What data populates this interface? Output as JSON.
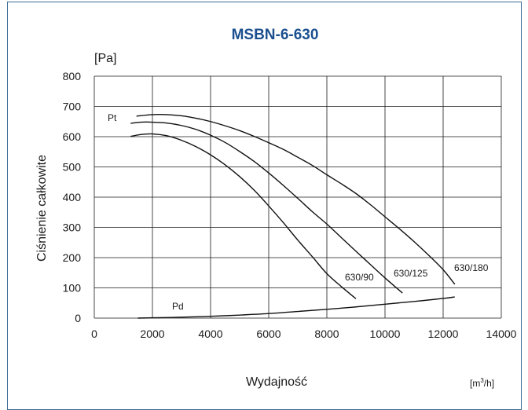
{
  "chart_data": {
    "type": "line",
    "title": "MSBN-6-630",
    "ylabel": "Ciśnienie całkowite",
    "yunit": "[Pa]",
    "xlabel": "Wydajność",
    "xunit_base": "[m",
    "xunit_sup": "3",
    "xunit_tail": "/h]",
    "xlim": [
      0,
      14000
    ],
    "ylim": [
      0,
      800
    ],
    "xticks": [
      0,
      2000,
      4000,
      6000,
      8000,
      10000,
      12000,
      14000
    ],
    "yticks": [
      0,
      100,
      200,
      300,
      400,
      500,
      600,
      700,
      800
    ],
    "grid": true,
    "series": [
      {
        "name": "630/90",
        "x": [
          1250,
          1600,
          2000,
          2500,
          3000,
          3500,
          4000,
          4500,
          5000,
          5500,
          6000,
          6500,
          7000,
          7500,
          8000,
          8500,
          9000
        ],
        "y": [
          601,
          607,
          609,
          603,
          588,
          567,
          540,
          507,
          468,
          423,
          371,
          316,
          258,
          203,
          147,
          104,
          64
        ]
      },
      {
        "name": "630/125",
        "x": [
          1250,
          1600,
          2000,
          2500,
          3000,
          3500,
          4000,
          4500,
          5000,
          5500,
          6000,
          6500,
          7000,
          7500,
          8000,
          8500,
          9000,
          9500,
          10000,
          10600
        ],
        "y": [
          644,
          648,
          648,
          645,
          637,
          624,
          605,
          581,
          551,
          518,
          480,
          439,
          396,
          352,
          311,
          266,
          221,
          177,
          133,
          83
        ]
      },
      {
        "name": "630/180",
        "x": [
          1450,
          2000,
          2500,
          3000,
          3500,
          4000,
          4500,
          5000,
          5500,
          6000,
          6500,
          7000,
          7500,
          8000,
          8500,
          9000,
          9500,
          10000,
          10500,
          11000,
          11500,
          12000,
          12400
        ],
        "y": [
          668,
          673,
          673,
          669,
          661,
          650,
          636,
          620,
          601,
          580,
          558,
          532,
          505,
          474,
          444,
          412,
          375,
          335,
          295,
          253,
          208,
          160,
          112
        ]
      },
      {
        "name": "Pd",
        "x": [
          1500,
          2000,
          3000,
          4000,
          5000,
          6000,
          7000,
          8000,
          9000,
          10000,
          11000,
          12000,
          12400
        ],
        "y": [
          0,
          1,
          3,
          6,
          10,
          15,
          22,
          29,
          37,
          46,
          55,
          65,
          70
        ]
      }
    ],
    "curve_labels": {
      "pt": "Pt",
      "pd": "Pd",
      "s90": "630/90",
      "s125": "630/125",
      "s180": "630/180"
    }
  }
}
